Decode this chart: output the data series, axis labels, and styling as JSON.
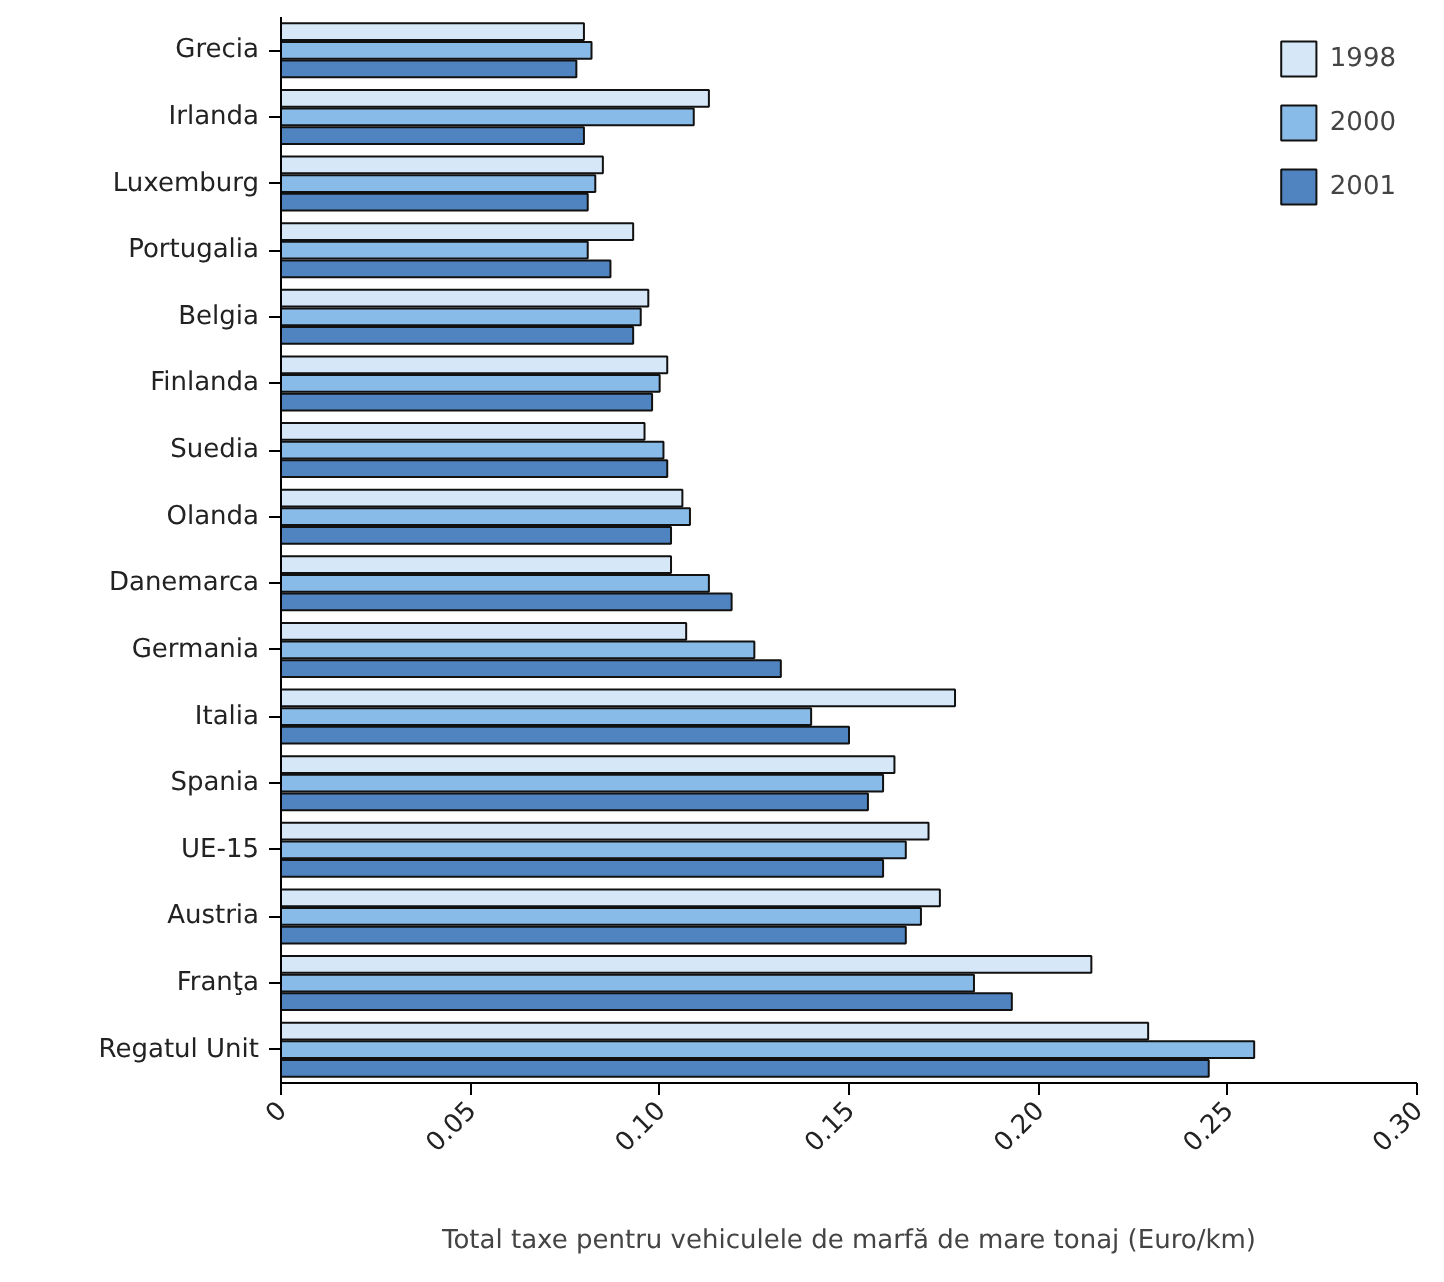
{
  "chart_data": {
    "type": "bar",
    "orientation": "horizontal",
    "xlabel": "Total taxe pentru vehiculele de marfă de mare tonaj (Euro/km)",
    "categories": [
      "Grecia",
      "Irlanda",
      "Luxemburg",
      "Portugalia",
      "Belgia",
      "Finlanda",
      "Suedia",
      "Olanda",
      "Danemarca",
      "Germania",
      "Italia",
      "Spania",
      "UE-15",
      "Austria",
      "Franţa",
      "Regatul Unit"
    ],
    "series": [
      {
        "name": "1998",
        "color": "#d6e8f8",
        "values": [
          0.08,
          0.113,
          0.085,
          0.093,
          0.097,
          0.102,
          0.096,
          0.106,
          0.103,
          0.107,
          0.178,
          0.162,
          0.171,
          0.174,
          0.214,
          0.229
        ]
      },
      {
        "name": "2000",
        "color": "#88bbe8",
        "values": [
          0.082,
          0.109,
          0.083,
          0.081,
          0.095,
          0.1,
          0.101,
          0.108,
          0.113,
          0.125,
          0.14,
          0.159,
          0.165,
          0.169,
          0.183,
          0.257
        ]
      },
      {
        "name": "2001",
        "color": "#5084c0",
        "values": [
          0.078,
          0.08,
          0.081,
          0.087,
          0.093,
          0.098,
          0.102,
          0.103,
          0.119,
          0.132,
          0.15,
          0.155,
          0.159,
          0.165,
          0.193,
          0.245
        ]
      }
    ],
    "xlim": [
      0,
      0.3
    ],
    "xticks": [
      {
        "value": 0,
        "label": "0"
      },
      0.05,
      {
        "value": 0.1,
        "label": "0.10"
      },
      0.15,
      {
        "value": 0.2,
        "label": "0.20"
      },
      0.25,
      {
        "value": 0.3,
        "label": "0.30"
      }
    ],
    "grid": false,
    "legend": "top right"
  }
}
